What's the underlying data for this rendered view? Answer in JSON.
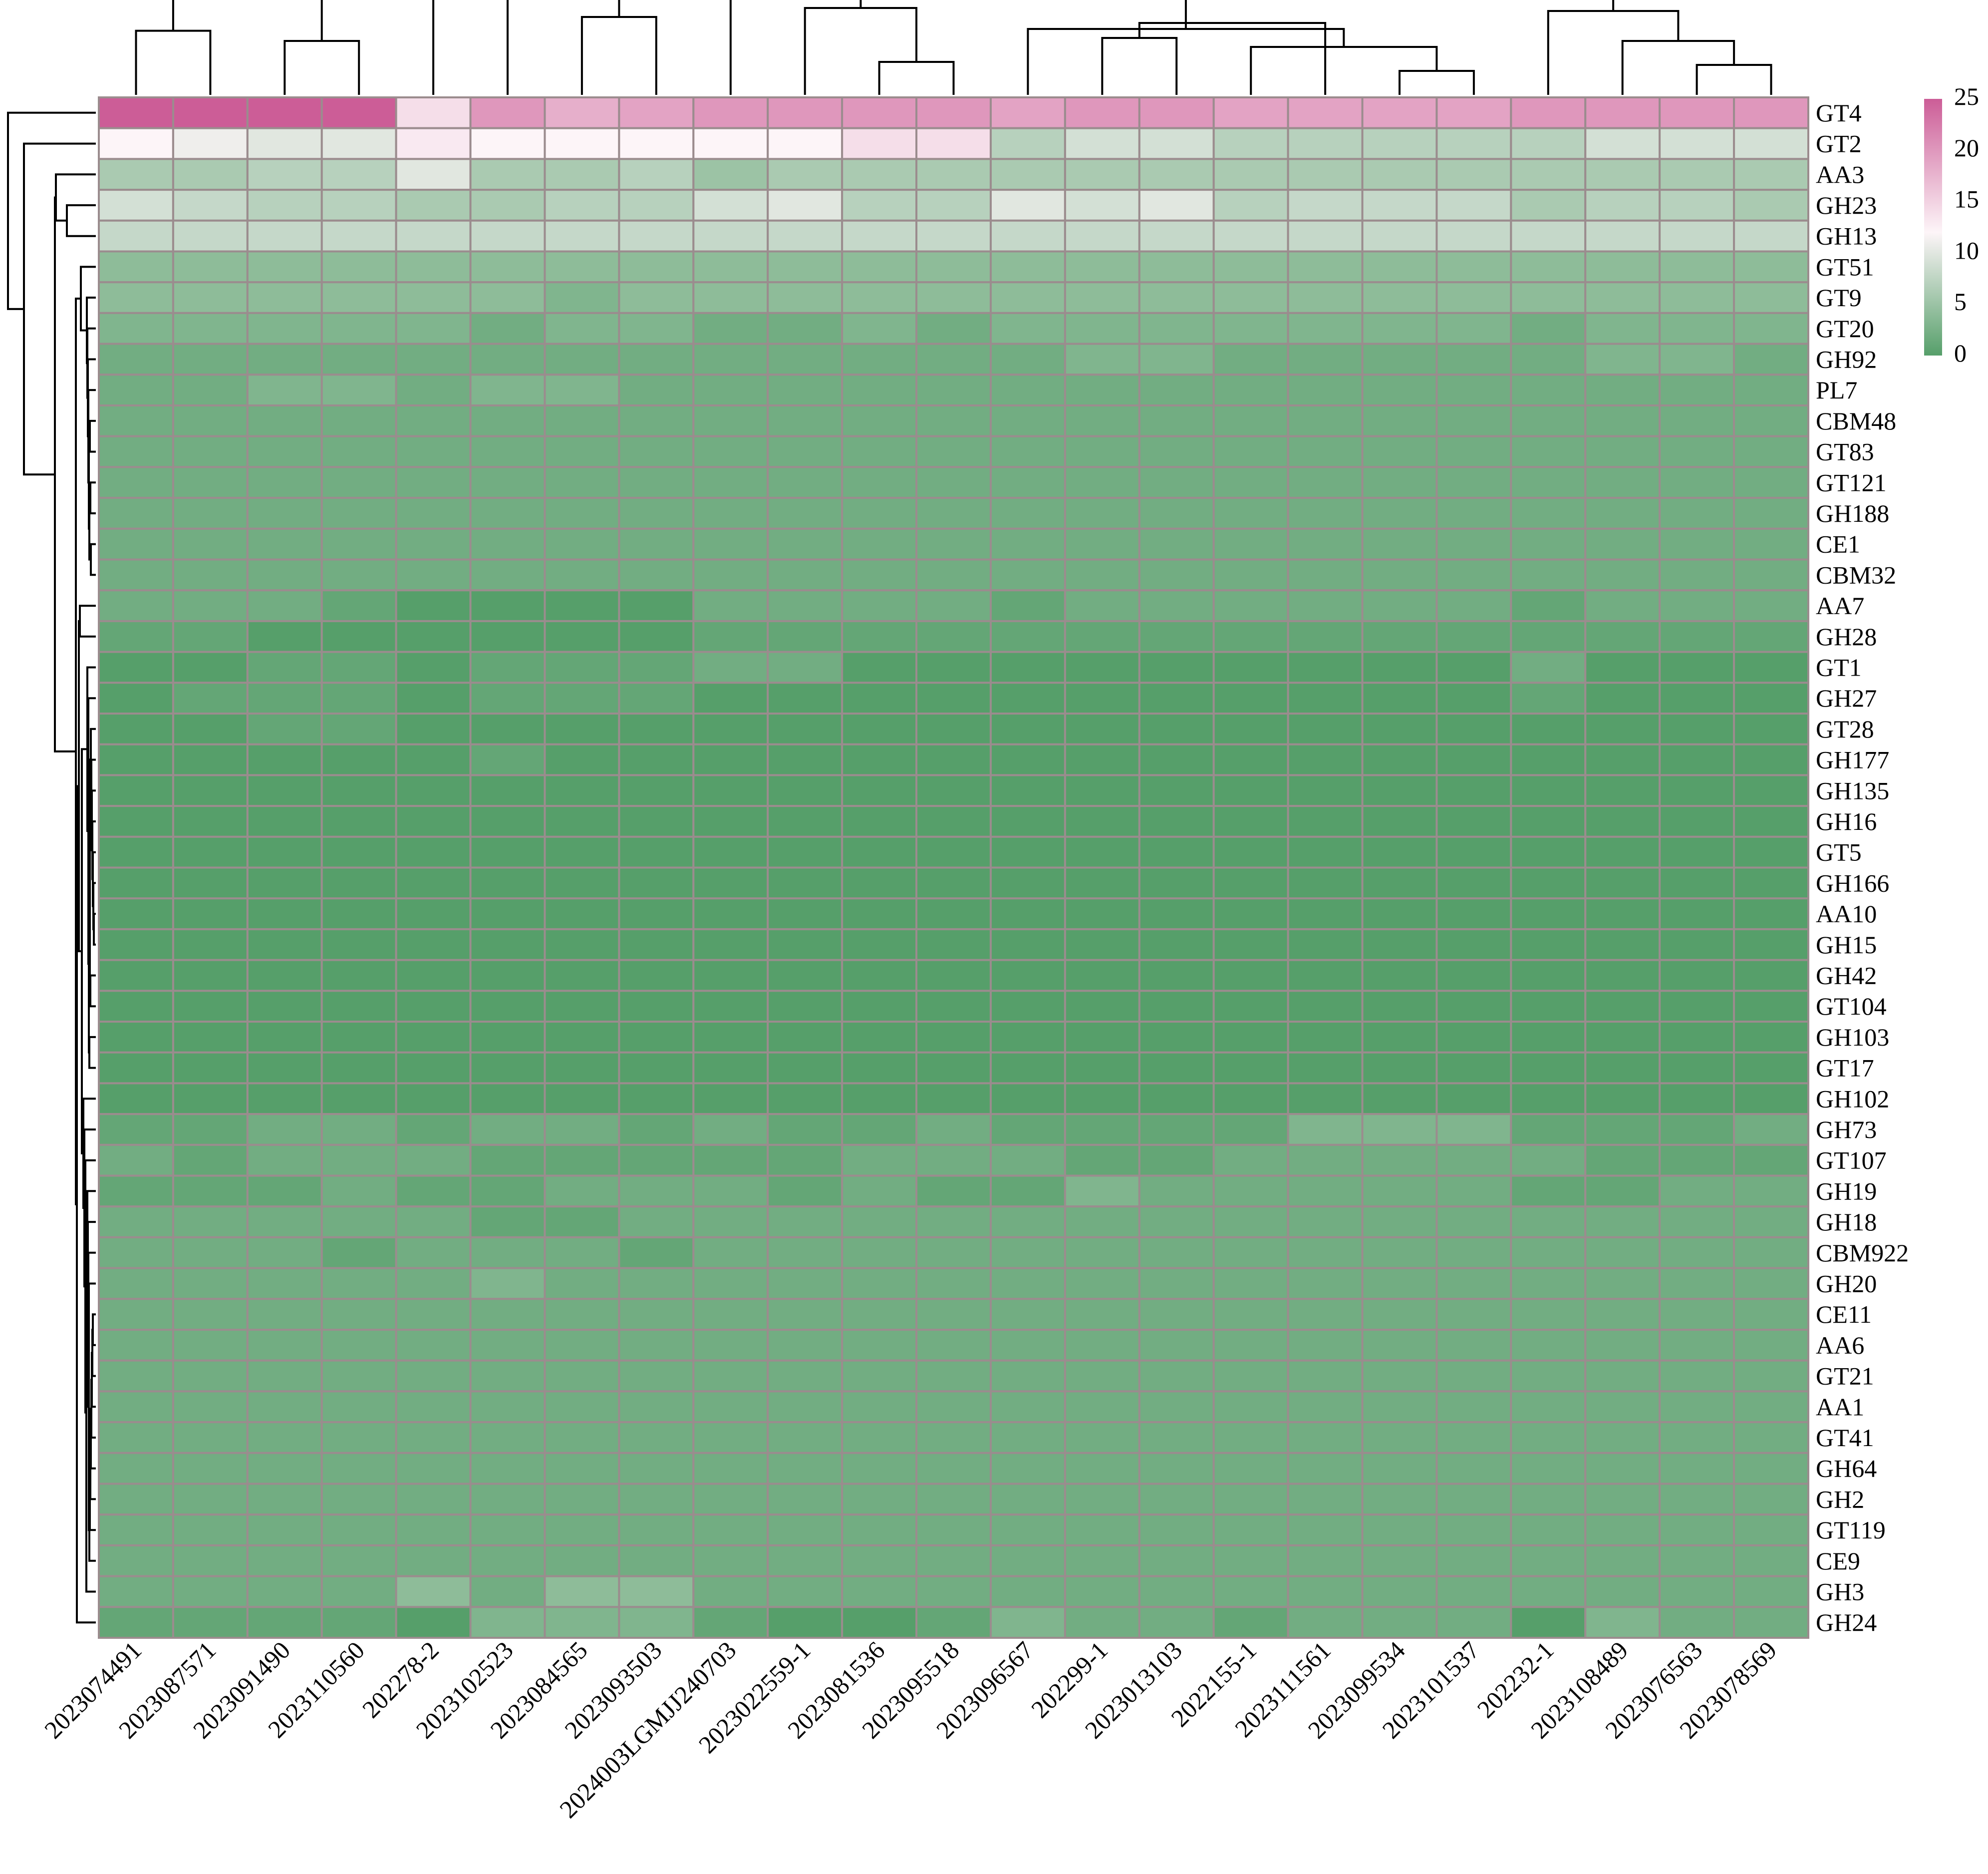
{
  "chart_data": {
    "type": "heatmap",
    "title": "",
    "xlabel": "",
    "ylabel": "",
    "columns": [
      "2023074491",
      "2023087571",
      "2023091490",
      "2023110560",
      "202278-2",
      "2023102523",
      "2023084565",
      "2023093503",
      "2024003LGMJJ240703",
      "2023022559-1",
      "2023081536",
      "2023095518",
      "2023096567",
      "202299-1",
      "2023013103",
      "2022155-1",
      "2023111561",
      "2023099534",
      "2023101537",
      "202232-1",
      "2023108489",
      "2023076563",
      "2023078569"
    ],
    "rows": [
      "GT4",
      "GT2",
      "AA3",
      "GH23",
      "GH13",
      "GT51",
      "GT9",
      "GT20",
      "GH92",
      "PL7",
      "CBM48",
      "GT83",
      "GT121",
      "GH188",
      "CE1",
      "CBM32",
      "AA7",
      "GH28",
      "GT1",
      "GH27",
      "GT28",
      "GH177",
      "GH135",
      "GH16",
      "GT5",
      "GH166",
      "AA10",
      "GH15",
      "GH42",
      "GT104",
      "GH103",
      "GT17",
      "GH102",
      "GH73",
      "GT107",
      "GH19",
      "GH18",
      "CBM922",
      "GH20",
      "CE11",
      "AA6",
      "GT21",
      "AA1",
      "GT41",
      "GH64",
      "GH2",
      "GT119",
      "CE9",
      "GH3",
      "GH24"
    ],
    "values": [
      [
        25,
        25,
        25,
        25,
        14,
        20,
        18,
        19,
        20,
        20,
        20,
        20,
        19,
        20,
        20,
        19,
        19,
        19,
        19,
        20,
        20,
        20,
        20
      ],
      [
        12,
        11,
        10,
        10,
        13,
        12,
        12,
        12,
        12,
        12,
        14,
        14,
        7,
        9,
        9,
        7,
        7,
        7,
        7,
        7,
        9,
        9,
        9
      ],
      [
        6,
        6,
        7,
        7,
        10,
        6,
        6,
        7,
        5,
        6,
        6,
        6,
        6,
        6,
        6,
        6,
        6,
        6,
        6,
        6,
        6,
        6,
        6
      ],
      [
        9,
        8,
        7,
        7,
        6,
        6,
        7,
        7,
        9,
        10,
        7,
        7,
        10,
        9,
        10,
        7,
        8,
        8,
        8,
        6,
        7,
        7,
        6
      ],
      [
        8,
        8,
        8,
        8,
        8,
        8,
        8,
        8,
        8,
        8,
        8,
        8,
        8,
        8,
        8,
        8,
        8,
        8,
        8,
        8,
        8,
        8,
        8
      ],
      [
        4,
        4,
        4,
        4,
        4,
        4,
        4,
        4,
        4,
        4,
        4,
        4,
        4,
        4,
        4,
        4,
        4,
        4,
        4,
        4,
        4,
        4,
        4
      ],
      [
        4,
        4,
        4,
        4,
        4,
        4,
        3,
        4,
        4,
        4,
        4,
        4,
        4,
        4,
        4,
        4,
        4,
        4,
        4,
        4,
        4,
        4,
        4
      ],
      [
        3,
        3,
        3,
        3,
        3,
        2,
        3,
        3,
        2,
        2,
        3,
        2,
        3,
        3,
        3,
        3,
        3,
        3,
        3,
        2,
        3,
        3,
        3
      ],
      [
        2,
        2,
        2,
        2,
        2,
        2,
        2,
        2,
        2,
        2,
        2,
        2,
        2,
        3,
        3,
        2,
        2,
        2,
        2,
        2,
        3,
        3,
        2
      ],
      [
        2,
        2,
        3,
        3,
        2,
        3,
        3,
        2,
        2,
        2,
        2,
        2,
        2,
        2,
        2,
        2,
        2,
        2,
        2,
        2,
        2,
        2,
        2
      ],
      [
        2,
        2,
        2,
        2,
        2,
        2,
        2,
        2,
        2,
        2,
        2,
        2,
        2,
        2,
        2,
        2,
        2,
        2,
        2,
        2,
        2,
        2,
        2
      ],
      [
        2,
        2,
        2,
        2,
        2,
        2,
        2,
        2,
        2,
        2,
        2,
        2,
        2,
        2,
        2,
        2,
        2,
        2,
        2,
        2,
        2,
        2,
        2
      ],
      [
        2,
        2,
        2,
        2,
        2,
        2,
        2,
        2,
        2,
        2,
        2,
        2,
        2,
        2,
        2,
        2,
        2,
        2,
        2,
        2,
        2,
        2,
        2
      ],
      [
        2,
        2,
        2,
        2,
        2,
        2,
        2,
        2,
        2,
        2,
        2,
        2,
        2,
        2,
        2,
        2,
        2,
        2,
        2,
        2,
        2,
        2,
        2
      ],
      [
        2,
        2,
        2,
        2,
        2,
        2,
        2,
        2,
        2,
        2,
        2,
        2,
        2,
        2,
        2,
        2,
        2,
        2,
        2,
        2,
        2,
        2,
        2
      ],
      [
        2,
        2,
        2,
        2,
        2,
        2,
        2,
        2,
        2,
        2,
        2,
        2,
        2,
        2,
        2,
        2,
        2,
        2,
        2,
        2,
        2,
        2,
        2
      ],
      [
        2,
        2,
        2,
        1,
        0,
        0,
        0,
        0,
        2,
        2,
        2,
        2,
        1,
        2,
        2,
        2,
        2,
        2,
        2,
        1,
        2,
        2,
        2
      ],
      [
        1,
        1,
        0,
        0,
        0,
        0,
        0,
        0,
        1,
        1,
        1,
        1,
        1,
        1,
        1,
        1,
        1,
        1,
        1,
        1,
        1,
        1,
        1
      ],
      [
        0,
        0,
        1,
        1,
        0,
        1,
        1,
        1,
        2,
        2,
        0,
        0,
        0,
        0,
        0,
        0,
        0,
        0,
        0,
        2,
        0,
        0,
        0
      ],
      [
        0,
        1,
        1,
        1,
        0,
        1,
        1,
        1,
        0,
        0,
        0,
        0,
        0,
        0,
        0,
        0,
        0,
        0,
        0,
        1,
        0,
        0,
        0
      ],
      [
        0,
        0,
        1,
        1,
        0,
        0,
        0,
        0,
        0,
        0,
        0,
        0,
        0,
        0,
        0,
        0,
        0,
        0,
        0,
        0,
        0,
        0,
        0
      ],
      [
        0,
        0,
        0,
        0,
        0,
        1,
        0,
        0,
        0,
        0,
        0,
        0,
        0,
        0,
        0,
        0,
        0,
        0,
        0,
        0,
        0,
        0,
        0
      ],
      [
        0,
        0,
        0,
        0,
        0,
        0,
        0,
        0,
        0,
        0,
        0,
        0,
        0,
        0,
        0,
        0,
        0,
        0,
        0,
        0,
        0,
        0,
        0
      ],
      [
        0,
        0,
        0,
        0,
        0,
        0,
        0,
        0,
        0,
        0,
        0,
        0,
        0,
        0,
        0,
        0,
        0,
        0,
        0,
        0,
        0,
        0,
        0
      ],
      [
        0,
        0,
        0,
        0,
        0,
        0,
        0,
        0,
        0,
        0,
        0,
        0,
        0,
        0,
        0,
        0,
        0,
        0,
        0,
        0,
        0,
        0,
        0
      ],
      [
        0,
        0,
        0,
        0,
        0,
        0,
        0,
        0,
        0,
        0,
        0,
        0,
        0,
        0,
        0,
        0,
        0,
        0,
        0,
        0,
        0,
        0,
        0
      ],
      [
        0,
        0,
        0,
        0,
        0,
        0,
        0,
        0,
        0,
        0,
        0,
        0,
        0,
        0,
        0,
        0,
        0,
        0,
        0,
        0,
        0,
        0,
        0
      ],
      [
        0,
        0,
        0,
        0,
        0,
        0,
        0,
        0,
        0,
        0,
        0,
        0,
        0,
        0,
        0,
        0,
        0,
        0,
        0,
        0,
        0,
        0,
        0
      ],
      [
        0,
        0,
        0,
        0,
        0,
        0,
        0,
        0,
        0,
        0,
        0,
        0,
        0,
        0,
        0,
        0,
        0,
        0,
        0,
        0,
        0,
        0,
        0
      ],
      [
        0,
        0,
        0,
        0,
        0,
        0,
        0,
        0,
        0,
        0,
        0,
        0,
        0,
        0,
        0,
        0,
        0,
        0,
        0,
        0,
        0,
        0,
        0
      ],
      [
        0,
        0,
        0,
        0,
        0,
        0,
        0,
        0,
        0,
        0,
        0,
        0,
        0,
        0,
        0,
        0,
        0,
        0,
        0,
        0,
        0,
        0,
        0
      ],
      [
        0,
        0,
        0,
        0,
        0,
        0,
        0,
        0,
        0,
        0,
        0,
        0,
        0,
        0,
        0,
        0,
        0,
        0,
        0,
        0,
        0,
        0,
        0
      ],
      [
        0,
        0,
        0,
        0,
        0,
        0,
        0,
        0,
        0,
        0,
        0,
        0,
        0,
        0,
        0,
        0,
        0,
        0,
        0,
        0,
        0,
        0,
        0
      ],
      [
        1,
        1,
        2,
        2,
        1,
        2,
        2,
        1,
        2,
        1,
        1,
        2,
        1,
        1,
        1,
        1,
        3,
        3,
        3,
        1,
        1,
        1,
        2
      ],
      [
        2,
        1,
        2,
        2,
        2,
        1,
        1,
        1,
        1,
        1,
        2,
        2,
        2,
        1,
        1,
        2,
        2,
        2,
        2,
        2,
        1,
        1,
        1
      ],
      [
        1,
        1,
        1,
        2,
        1,
        1,
        2,
        2,
        2,
        1,
        2,
        1,
        1,
        3,
        2,
        2,
        2,
        2,
        2,
        1,
        1,
        2,
        2
      ],
      [
        2,
        2,
        2,
        2,
        2,
        1,
        1,
        2,
        2,
        2,
        2,
        2,
        2,
        2,
        2,
        2,
        2,
        2,
        2,
        2,
        2,
        2,
        2
      ],
      [
        2,
        2,
        2,
        1,
        2,
        2,
        2,
        1,
        2,
        2,
        2,
        2,
        2,
        2,
        2,
        2,
        2,
        2,
        2,
        2,
        2,
        2,
        2
      ],
      [
        2,
        2,
        2,
        2,
        2,
        3,
        2,
        2,
        2,
        2,
        2,
        2,
        2,
        2,
        2,
        2,
        2,
        2,
        2,
        2,
        2,
        2,
        2
      ],
      [
        2,
        2,
        2,
        2,
        2,
        2,
        2,
        2,
        2,
        2,
        2,
        2,
        2,
        2,
        2,
        2,
        2,
        2,
        2,
        2,
        2,
        2,
        2
      ],
      [
        2,
        2,
        2,
        2,
        2,
        2,
        2,
        2,
        2,
        2,
        2,
        2,
        2,
        2,
        2,
        2,
        2,
        2,
        2,
        2,
        2,
        2,
        2
      ],
      [
        2,
        2,
        2,
        2,
        2,
        2,
        2,
        2,
        2,
        2,
        2,
        2,
        2,
        2,
        2,
        2,
        2,
        2,
        2,
        2,
        2,
        2,
        2
      ],
      [
        2,
        2,
        2,
        2,
        2,
        2,
        2,
        2,
        2,
        2,
        2,
        2,
        2,
        2,
        2,
        2,
        2,
        2,
        2,
        2,
        2,
        2,
        2
      ],
      [
        2,
        2,
        2,
        2,
        2,
        2,
        2,
        2,
        2,
        2,
        2,
        2,
        2,
        2,
        2,
        2,
        2,
        2,
        2,
        2,
        2,
        2,
        2
      ],
      [
        2,
        2,
        2,
        2,
        2,
        2,
        2,
        2,
        2,
        2,
        2,
        2,
        2,
        2,
        2,
        2,
        2,
        2,
        2,
        2,
        2,
        2,
        2
      ],
      [
        2,
        2,
        2,
        2,
        2,
        2,
        2,
        2,
        2,
        2,
        2,
        2,
        2,
        2,
        2,
        2,
        2,
        2,
        2,
        2,
        2,
        2,
        2
      ],
      [
        2,
        2,
        2,
        2,
        2,
        2,
        2,
        2,
        2,
        2,
        2,
        2,
        2,
        2,
        2,
        2,
        2,
        2,
        2,
        2,
        2,
        2,
        2
      ],
      [
        2,
        2,
        2,
        2,
        2,
        2,
        2,
        2,
        2,
        2,
        2,
        2,
        2,
        2,
        2,
        2,
        2,
        2,
        2,
        2,
        2,
        2,
        2
      ],
      [
        2,
        2,
        2,
        2,
        4,
        2,
        4,
        4,
        2,
        2,
        2,
        2,
        2,
        2,
        2,
        2,
        2,
        2,
        2,
        2,
        2,
        2,
        2
      ],
      [
        1,
        1,
        1,
        1,
        0,
        3,
        3,
        3,
        1,
        0,
        0,
        1,
        3,
        2,
        2,
        1,
        2,
        2,
        2,
        0,
        3,
        2,
        2
      ]
    ],
    "legend": {
      "ticks": [
        "25",
        "20",
        "15",
        "10",
        "5",
        "0"
      ],
      "range": [
        0,
        25
      ],
      "placement": "top-right"
    },
    "colors": {
      "low": "#569f6a",
      "mid": "#fdf5f8",
      "high": "#cc5d97",
      "grid": "#9b8c8e",
      "dendrogram": "#000000"
    },
    "column_dendrogram": true,
    "row_dendrogram": true
  }
}
